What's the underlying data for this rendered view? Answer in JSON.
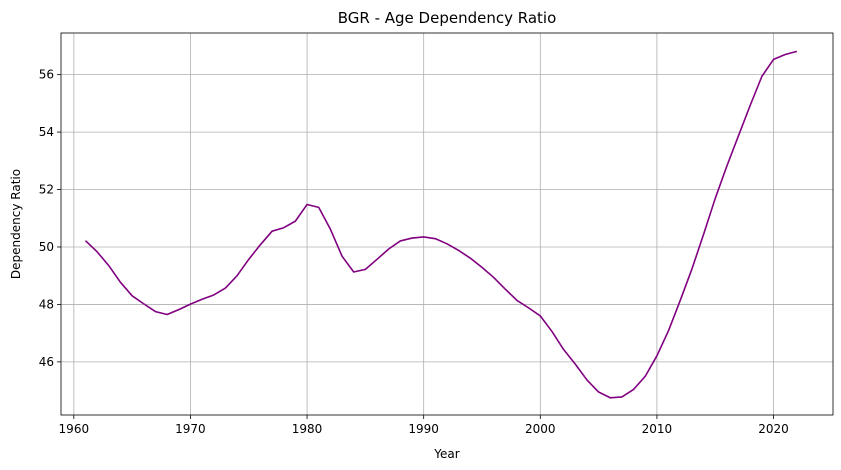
{
  "chart_data": {
    "type": "line",
    "title": "BGR - Age Dependency Ratio",
    "xlabel": "Year",
    "ylabel": "Dependency Ratio",
    "xlim": [
      1958.9,
      2025.1
    ],
    "ylim": [
      44.15,
      57.45
    ],
    "xticks": [
      1960,
      1970,
      1980,
      1990,
      2000,
      2010,
      2020
    ],
    "yticks": [
      46,
      48,
      50,
      52,
      54,
      56
    ],
    "grid": true,
    "legend": "none",
    "series": [
      {
        "color": "#800080",
        "x": [
          1961,
          1962,
          1963,
          1964,
          1965,
          1966,
          1967,
          1968,
          1969,
          1970,
          1971,
          1972,
          1973,
          1974,
          1975,
          1976,
          1977,
          1978,
          1979,
          1980,
          1981,
          1982,
          1983,
          1984,
          1985,
          1986,
          1987,
          1988,
          1989,
          1990,
          1991,
          1992,
          1993,
          1994,
          1995,
          1996,
          1997,
          1998,
          1999,
          2000,
          2001,
          2002,
          2003,
          2004,
          2005,
          2006,
          2007,
          2008,
          2009,
          2010,
          2011,
          2012,
          2013,
          2014,
          2015,
          2016,
          2017,
          2018,
          2019,
          2020,
          2021,
          2022
        ],
        "y": [
          50.22,
          49.83,
          49.35,
          48.77,
          48.3,
          48.02,
          47.75,
          47.65,
          47.82,
          48.01,
          48.18,
          48.33,
          48.57,
          49.0,
          49.57,
          50.08,
          50.55,
          50.67,
          50.9,
          51.48,
          51.38,
          50.62,
          49.68,
          49.13,
          49.22,
          49.57,
          49.93,
          50.21,
          50.31,
          50.35,
          50.29,
          50.11,
          49.88,
          49.61,
          49.29,
          48.94,
          48.53,
          48.14,
          47.88,
          47.6,
          47.06,
          46.43,
          45.92,
          45.37,
          44.95,
          44.75,
          44.78,
          45.04,
          45.5,
          46.21,
          47.09,
          48.14,
          49.23,
          50.44,
          51.69,
          52.82,
          53.88,
          54.93,
          55.94,
          56.53,
          56.7,
          56.81
        ]
      }
    ]
  }
}
